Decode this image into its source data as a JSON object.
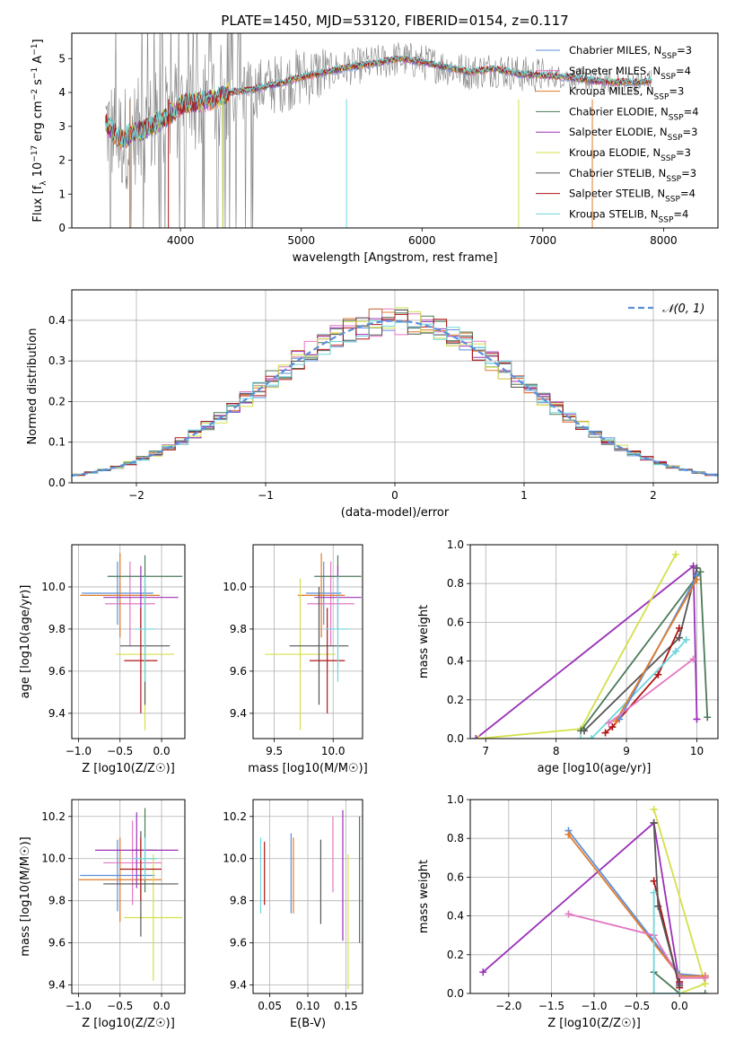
{
  "colors": {
    "chabrier_miles": "#5b8fd9",
    "salpeter_miles": "#e377c2",
    "kroupa_miles": "#e07b2a",
    "chabrier_elodie": "#4c7a58",
    "salpeter_elodie": "#9b30b8",
    "kroupa_elodie": "#d4e04a",
    "chabrier_stelib": "#555555",
    "salpeter_stelib": "#b01515",
    "kroupa_stelib": "#6fd6dc",
    "data_grey": "#808080"
  },
  "chart_data": [
    {
      "id": "spectrum",
      "type": "line",
      "title": "PLATE=1450, MJD=53120, FIBERID=0154, z=0.117",
      "xlabel": "wavelength [Angstrom, rest frame]",
      "ylabel": "Flux [f_λ 10^-17 erg cm^-2 s^-1 A^-1]",
      "xlim": [
        3100,
        8450
      ],
      "ylim": [
        0,
        5.75
      ],
      "xticks": [
        4000,
        5000,
        6000,
        7000,
        8000
      ],
      "yticks": [
        0,
        1,
        2,
        3,
        4,
        5
      ],
      "grid": false,
      "legend_position": "top-right",
      "legend": [
        {
          "label": "Chabrier MILES, N_SSP=3",
          "color_key": "chabrier_miles"
        },
        {
          "label": "Salpeter MILES, N_SSP=4",
          "color_key": "salpeter_miles"
        },
        {
          "label": "Kroupa MILES, N_SSP=3",
          "color_key": "kroupa_miles"
        },
        {
          "label": "Chabrier ELODIE, N_SSP=4",
          "color_key": "chabrier_elodie"
        },
        {
          "label": "Salpeter ELODIE, N_SSP=3",
          "color_key": "salpeter_elodie"
        },
        {
          "label": "Kroupa ELODIE, N_SSP=3",
          "color_key": "kroupa_elodie"
        },
        {
          "label": "Chabrier STELIB, N_SSP=3",
          "color_key": "chabrier_stelib"
        },
        {
          "label": "Salpeter STELIB, N_SSP=4",
          "color_key": "salpeter_stelib"
        },
        {
          "label": "Kroupa STELIB, N_SSP=4",
          "color_key": "kroupa_stelib"
        }
      ],
      "continuum": {
        "x": [
          3380,
          3500,
          3600,
          3700,
          3800,
          3900,
          4000,
          4100,
          4200,
          4300,
          4400,
          4600,
          4800,
          5000,
          5200,
          5400,
          5600,
          5800,
          6000,
          6200,
          6400,
          6600,
          6800,
          7000,
          7200,
          7400,
          7600,
          7800,
          7900
        ],
        "y": [
          3.1,
          2.6,
          2.8,
          2.9,
          3.1,
          3.3,
          3.6,
          3.7,
          3.75,
          3.8,
          4.0,
          4.1,
          4.25,
          4.45,
          4.6,
          4.75,
          4.85,
          5.0,
          4.9,
          4.75,
          4.6,
          4.7,
          4.55,
          4.5,
          4.45,
          4.35,
          4.3,
          4.3,
          4.35
        ]
      }
    },
    {
      "id": "residuals",
      "type": "histogram",
      "xlabel": "(data-model)/error",
      "ylabel": "Normed distribution",
      "xlim": [
        -2.5,
        2.5
      ],
      "ylim": [
        0,
        0.475
      ],
      "xticks": [
        -2,
        -1,
        0,
        1,
        2
      ],
      "yticks": [
        0.0,
        0.1,
        0.2,
        0.3,
        0.4
      ],
      "grid": true,
      "legend_position": "top-right",
      "legend": [
        {
          "label": "𝒩(0, 1)",
          "style": "dashed",
          "color": "#5b8fd9"
        }
      ],
      "bin_width": 0.1
    },
    {
      "id": "age_vs_Z",
      "type": "errorbar",
      "xlabel": "Z [log10(Z/Z☉)]",
      "ylabel": "age [log10(age/yr)]",
      "xlim": [
        -1.08,
        0.28
      ],
      "ylim": [
        9.28,
        10.2
      ],
      "xticks": [
        -1.0,
        -0.5,
        0.0
      ],
      "yticks": [
        9.4,
        9.6,
        9.8,
        10.0
      ],
      "grid": true,
      "series": [
        {
          "color_key": "chabrier_miles",
          "x": -0.53,
          "xerr": 0.43,
          "y": 9.97,
          "yerr": 0.15
        },
        {
          "color_key": "salpeter_miles",
          "x": -0.38,
          "xerr": 0.3,
          "y": 9.92,
          "yerr": 0.2
        },
        {
          "color_key": "kroupa_miles",
          "x": -0.5,
          "xerr": 0.48,
          "y": 9.96,
          "yerr": 0.2
        },
        {
          "color_key": "chabrier_elodie",
          "x": -0.2,
          "xerr": 0.45,
          "y": 10.05,
          "yerr": 0.1
        },
        {
          "color_key": "salpeter_elodie",
          "x": -0.25,
          "xerr": 0.45,
          "y": 9.95,
          "yerr": 0.15
        },
        {
          "color_key": "kroupa_elodie",
          "x": -0.2,
          "xerr": 0.35,
          "y": 9.68,
          "yerr": 0.36
        },
        {
          "color_key": "chabrier_stelib",
          "x": -0.2,
          "xerr": 0.3,
          "y": 9.72,
          "yerr": 0.28
        },
        {
          "color_key": "salpeter_stelib",
          "x": -0.25,
          "xerr": 0.2,
          "y": 9.65,
          "yerr": 0.25
        },
        {
          "color_key": "kroupa_stelib",
          "x": -0.2,
          "xerr": 0.12,
          "y": 9.8,
          "yerr": 0.25
        }
      ]
    },
    {
      "id": "age_vs_mass",
      "type": "errorbar",
      "xlabel": "mass [log10(M/M☉)]",
      "ylabel": "",
      "xlim": [
        9.32,
        10.25
      ],
      "ylim": [
        9.28,
        10.2
      ],
      "xticks": [
        9.5,
        10.0
      ],
      "yticks": [
        9.4,
        9.6,
        9.8,
        10.0
      ],
      "grid": true,
      "series": [
        {
          "color_key": "chabrier_miles",
          "x": 9.92,
          "xerr": 0.15,
          "y": 9.97,
          "yerr": 0.15
        },
        {
          "color_key": "salpeter_miles",
          "x": 9.98,
          "xerr": 0.2,
          "y": 9.92,
          "yerr": 0.2
        },
        {
          "color_key": "kroupa_miles",
          "x": 9.9,
          "xerr": 0.2,
          "y": 9.96,
          "yerr": 0.2
        },
        {
          "color_key": "chabrier_elodie",
          "x": 10.04,
          "xerr": 0.2,
          "y": 10.05,
          "yerr": 0.1
        },
        {
          "color_key": "salpeter_elodie",
          "x": 10.04,
          "xerr": 0.2,
          "y": 9.95,
          "yerr": 0.15
        },
        {
          "color_key": "kroupa_elodie",
          "x": 9.72,
          "xerr": 0.3,
          "y": 9.68,
          "yerr": 0.36
        },
        {
          "color_key": "chabrier_stelib",
          "x": 9.88,
          "xerr": 0.25,
          "y": 9.72,
          "yerr": 0.28
        },
        {
          "color_key": "salpeter_stelib",
          "x": 9.95,
          "xerr": 0.15,
          "y": 9.65,
          "yerr": 0.25
        },
        {
          "color_key": "kroupa_stelib",
          "x": 10.04,
          "xerr": 0.1,
          "y": 9.8,
          "yerr": 0.25
        }
      ]
    },
    {
      "id": "weight_vs_age",
      "type": "line",
      "xlabel": "age [log10(age/yr)]",
      "ylabel": "mass weight",
      "xlim": [
        6.78,
        10.3
      ],
      "ylim": [
        0,
        1.0
      ],
      "xticks": [
        7,
        8,
        9,
        10
      ],
      "yticks": [
        0.0,
        0.2,
        0.4,
        0.6,
        0.8,
        1.0
      ],
      "grid": true,
      "series": [
        {
          "color_key": "salpeter_elodie",
          "x": [
            6.86,
            9.95,
            10.0
          ],
          "y": [
            0.0,
            0.89,
            0.1
          ]
        },
        {
          "color_key": "kroupa_elodie",
          "x": [
            6.9,
            8.35,
            9.7
          ],
          "y": [
            0.0,
            0.05,
            0.95
          ]
        },
        {
          "color_key": "chabrier_elodie",
          "x": [
            8.35,
            10.05,
            10.15
          ],
          "y": [
            0.04,
            0.86,
            0.11
          ]
        },
        {
          "color_key": "chabrier_stelib",
          "x": [
            8.4,
            9.75,
            10.0
          ],
          "y": [
            0.04,
            0.52,
            0.88
          ]
        },
        {
          "color_key": "salpeter_stelib",
          "x": [
            8.7,
            8.8,
            9.45,
            9.75
          ],
          "y": [
            0.03,
            0.06,
            0.33,
            0.57
          ]
        },
        {
          "color_key": "kroupa_stelib",
          "x": [
            8.35,
            8.5,
            9.7,
            9.85
          ],
          "y": [
            0.0,
            0.0,
            0.45,
            0.51
          ]
        },
        {
          "color_key": "chabrier_miles",
          "x": [
            8.9,
            10.0
          ],
          "y": [
            0.1,
            0.84
          ]
        },
        {
          "color_key": "kroupa_miles",
          "x": [
            8.85,
            10.0
          ],
          "y": [
            0.09,
            0.82
          ]
        },
        {
          "color_key": "salpeter_miles",
          "x": [
            8.75,
            9.95
          ],
          "y": [
            0.08,
            0.41
          ]
        }
      ]
    },
    {
      "id": "mass_vs_Z",
      "type": "errorbar",
      "xlabel": "Z [log10(Z/Z☉)]",
      "ylabel": "mass [log10(M/M☉)]",
      "xlim": [
        -1.08,
        0.28
      ],
      "ylim": [
        9.36,
        10.28
      ],
      "xticks": [
        -1.0,
        -0.5,
        0.0
      ],
      "yticks": [
        9.4,
        9.6,
        9.8,
        10.0,
        10.2
      ],
      "grid": true,
      "series": [
        {
          "color_key": "chabrier_miles",
          "x": -0.53,
          "xerr": 0.45,
          "y": 9.92,
          "yerr": 0.17
        },
        {
          "color_key": "salpeter_miles",
          "x": -0.35,
          "xerr": 0.35,
          "y": 9.98,
          "yerr": 0.2
        },
        {
          "color_key": "kroupa_miles",
          "x": -0.5,
          "xerr": 0.5,
          "y": 9.9,
          "yerr": 0.2
        },
        {
          "color_key": "chabrier_elodie",
          "x": -0.2,
          "xerr": 0.15,
          "y": 10.04,
          "yerr": 0.2
        },
        {
          "color_key": "salpeter_elodie",
          "x": -0.3,
          "xerr": 0.5,
          "y": 10.04,
          "yerr": 0.18
        },
        {
          "color_key": "kroupa_elodie",
          "x": -0.1,
          "xerr": 0.35,
          "y": 9.72,
          "yerr": 0.3
        },
        {
          "color_key": "chabrier_stelib",
          "x": -0.25,
          "xerr": 0.45,
          "y": 9.88,
          "yerr": 0.25
        },
        {
          "color_key": "salpeter_stelib",
          "x": -0.25,
          "xerr": 0.25,
          "y": 9.95,
          "yerr": 0.15
        },
        {
          "color_key": "kroupa_stelib",
          "x": -0.2,
          "xerr": 0.15,
          "y": 10.0,
          "yerr": 0.1
        }
      ]
    },
    {
      "id": "mass_vs_ebv",
      "type": "errorbar",
      "xlabel": "E(B-V)",
      "ylabel": "",
      "xlim": [
        0.028,
        0.172
      ],
      "ylim": [
        9.36,
        10.28
      ],
      "xticks": [
        0.05,
        0.1,
        0.15
      ],
      "yticks": [
        9.4,
        9.6,
        9.8,
        10.0,
        10.2
      ],
      "grid": true,
      "series": [
        {
          "color_key": "kroupa_stelib",
          "x": 0.038,
          "y": 9.92,
          "yerr": 0.18
        },
        {
          "color_key": "salpeter_stelib",
          "x": 0.043,
          "y": 9.93,
          "yerr": 0.15
        },
        {
          "color_key": "chabrier_miles",
          "x": 0.078,
          "y": 9.93,
          "yerr": 0.19
        },
        {
          "color_key": "kroupa_miles",
          "x": 0.081,
          "y": 9.92,
          "yerr": 0.18
        },
        {
          "color_key": "chabrier_stelib",
          "x": 0.117,
          "y": 9.89,
          "yerr": 0.2
        },
        {
          "color_key": "salpeter_miles",
          "x": 0.133,
          "y": 10.02,
          "yerr": 0.18
        },
        {
          "color_key": "salpeter_elodie",
          "x": 0.146,
          "y": 9.92,
          "yerr": 0.31
        },
        {
          "color_key": "kroupa_elodie",
          "x": 0.153,
          "y": 9.7,
          "yerr": 0.32
        },
        {
          "color_key": "chabrier_elodie",
          "x": 0.168,
          "y": 9.9,
          "yerr": 0.3
        }
      ]
    },
    {
      "id": "weight_vs_Z",
      "type": "line",
      "xlabel": "Z [log10(Z/Z☉)]",
      "ylabel": "mass weight",
      "xlim": [
        -2.45,
        0.45
      ],
      "ylim": [
        0,
        1.0
      ],
      "xticks": [
        -2.0,
        -1.5,
        -1.0,
        -0.5,
        0.0
      ],
      "yticks": [
        0.0,
        0.2,
        0.4,
        0.6,
        0.8,
        1.0
      ],
      "grid": true,
      "series": [
        {
          "color_key": "salpeter_elodie",
          "x": [
            -2.3,
            -0.3,
            0.0
          ],
          "y": [
            0.11,
            0.88,
            0.05
          ]
        },
        {
          "color_key": "kroupa_elodie",
          "x": [
            -0.3,
            0.3,
            0.0
          ],
          "y": [
            0.95,
            0.05,
            0.0
          ]
        },
        {
          "color_key": "chabrier_elodie",
          "x": [
            -0.3,
            0.0,
            0.3
          ],
          "y": [
            0.11,
            0.0,
            0.0
          ]
        },
        {
          "color_key": "chabrier_miles",
          "x": [
            -1.3,
            0.0,
            0.3
          ],
          "y": [
            0.84,
            0.1,
            0.09
          ]
        },
        {
          "color_key": "kroupa_miles",
          "x": [
            -1.3,
            0.0,
            0.3
          ],
          "y": [
            0.82,
            0.09,
            0.09
          ]
        },
        {
          "color_key": "salpeter_miles",
          "x": [
            -1.3,
            -0.3,
            0.0,
            0.3
          ],
          "y": [
            0.41,
            0.3,
            0.08,
            0.08
          ]
        },
        {
          "color_key": "salpeter_stelib",
          "x": [
            -0.3,
            0.0,
            0.0
          ],
          "y": [
            0.58,
            0.03,
            0.06
          ]
        },
        {
          "color_key": "kroupa_stelib",
          "x": [
            -0.3,
            -0.3,
            0.0
          ],
          "y": [
            0.52,
            0.0,
            0.0
          ]
        },
        {
          "color_key": "chabrier_stelib",
          "x": [
            -0.3,
            -0.25,
            0.0
          ],
          "y": [
            0.88,
            0.45,
            0.04
          ]
        }
      ]
    }
  ]
}
